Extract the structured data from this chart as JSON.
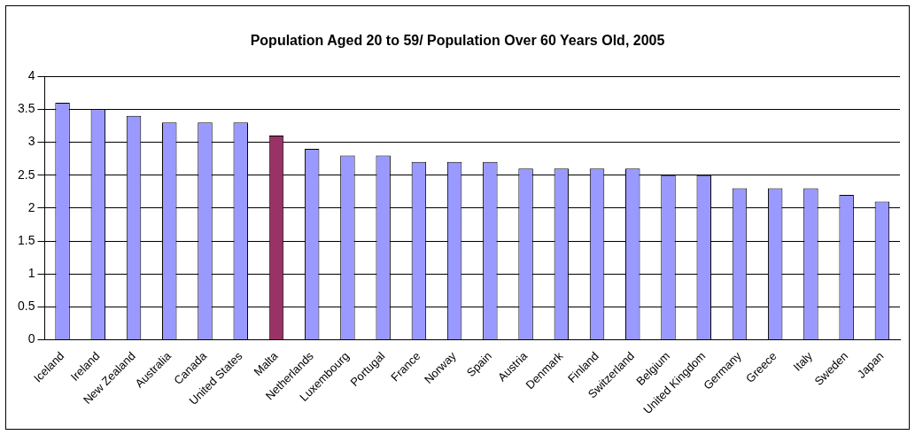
{
  "chart_data": {
    "type": "bar",
    "title": "Population Aged 20 to 59/ Population Over 60 Years Old, 2005",
    "categories": [
      "Iceland",
      "Ireland",
      "New Zealand",
      "Australia",
      "Canada",
      "United States",
      "Malta",
      "Netherlands",
      "Luxembourg",
      "Portugal",
      "France",
      "Norway",
      "Spain",
      "Austria",
      "Denmark",
      "Finland",
      "Switzerland",
      "Belgium",
      "United Kingdom",
      "Germany",
      "Greece",
      "Italy",
      "Sweden",
      "Japan"
    ],
    "values": [
      3.6,
      3.5,
      3.4,
      3.3,
      3.3,
      3.3,
      3.1,
      2.9,
      2.8,
      2.8,
      2.7,
      2.7,
      2.7,
      2.6,
      2.6,
      2.6,
      2.6,
      2.5,
      2.5,
      2.3,
      2.3,
      2.3,
      2.2,
      2.1
    ],
    "colors": [
      "#9999ff",
      "#9999ff",
      "#9999ff",
      "#9999ff",
      "#9999ff",
      "#9999ff",
      "#993366",
      "#9999ff",
      "#9999ff",
      "#9999ff",
      "#9999ff",
      "#9999ff",
      "#9999ff",
      "#9999ff",
      "#9999ff",
      "#9999ff",
      "#9999ff",
      "#9999ff",
      "#9999ff",
      "#9999ff",
      "#9999ff",
      "#9999ff",
      "#9999ff",
      "#9999ff"
    ],
    "ylim": [
      0,
      4
    ],
    "yticks": [
      0,
      0.5,
      1,
      1.5,
      2,
      2.5,
      3,
      3.5,
      4
    ],
    "grid": "y",
    "legend": false
  }
}
